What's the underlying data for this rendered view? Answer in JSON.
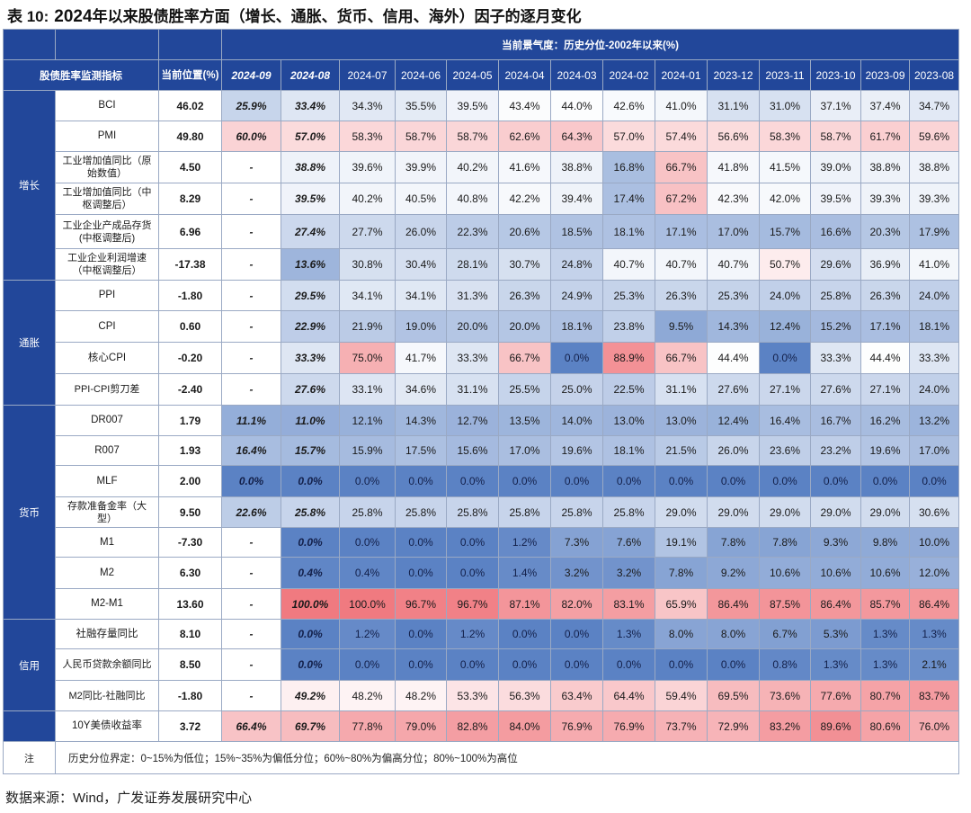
{
  "title": {
    "label": "表 10:",
    "year": "2024",
    "rest": "年以来股债胜率方面（增长、通胀、货币、信用、海外）因子的逐月变化"
  },
  "header": {
    "indicator_col": "股债胜率监测指标",
    "current_col": "当前位置(%)",
    "history_span": "当前景气度：历史分位-2002年以来(%)",
    "months": [
      "2024-09",
      "2024-08",
      "2024-07",
      "2024-06",
      "2024-05",
      "2024-04",
      "2024-03",
      "2024-02",
      "2024-01",
      "2023-12",
      "2023-11",
      "2023-10",
      "2023-09",
      "2023-08"
    ]
  },
  "groups": [
    {
      "name": "增长",
      "rows": [
        {
          "indicator": "BCI",
          "current": "46.02",
          "values": [
            "25.9%",
            "33.4%",
            "34.3%",
            "35.5%",
            "39.5%",
            "43.4%",
            "44.0%",
            "42.6%",
            "41.0%",
            "31.1%",
            "31.0%",
            "37.1%",
            "37.4%",
            "34.7%"
          ]
        },
        {
          "indicator": "PMI",
          "current": "49.80",
          "values": [
            "60.0%",
            "57.0%",
            "58.3%",
            "58.7%",
            "58.7%",
            "62.6%",
            "64.3%",
            "57.0%",
            "57.4%",
            "56.6%",
            "58.3%",
            "58.7%",
            "61.7%",
            "59.6%"
          ]
        },
        {
          "indicator": "工业增加值同比（原始数值）",
          "current": "4.50",
          "values": [
            "-",
            "38.8%",
            "39.6%",
            "39.9%",
            "40.2%",
            "41.6%",
            "38.8%",
            "16.8%",
            "66.7%",
            "41.8%",
            "41.5%",
            "39.0%",
            "38.8%",
            "38.8%"
          ]
        },
        {
          "indicator": "工业增加值同比（中枢调整后）",
          "current": "8.29",
          "values": [
            "-",
            "39.5%",
            "40.2%",
            "40.5%",
            "40.8%",
            "42.2%",
            "39.4%",
            "17.4%",
            "67.2%",
            "42.3%",
            "42.0%",
            "39.5%",
            "39.3%",
            "39.3%"
          ]
        },
        {
          "indicator": "工业企业产成品存货(中枢调整后)",
          "current": "6.96",
          "values": [
            "-",
            "27.4%",
            "27.7%",
            "26.0%",
            "22.3%",
            "20.6%",
            "18.5%",
            "18.1%",
            "17.1%",
            "17.0%",
            "15.7%",
            "16.6%",
            "20.3%",
            "17.9%"
          ]
        },
        {
          "indicator": "工业企业利润增速（中枢调整后）",
          "current": "-17.38",
          "values": [
            "-",
            "13.6%",
            "30.8%",
            "30.4%",
            "28.1%",
            "30.7%",
            "24.8%",
            "40.7%",
            "40.7%",
            "40.7%",
            "50.7%",
            "29.6%",
            "36.9%",
            "41.0%"
          ]
        }
      ]
    },
    {
      "name": "通胀",
      "rows": [
        {
          "indicator": "PPI",
          "current": "-1.80",
          "values": [
            "-",
            "29.5%",
            "34.1%",
            "34.1%",
            "31.3%",
            "26.3%",
            "24.9%",
            "25.3%",
            "26.3%",
            "25.3%",
            "24.0%",
            "25.8%",
            "26.3%",
            "24.0%"
          ]
        },
        {
          "indicator": "CPI",
          "current": "0.60",
          "values": [
            "-",
            "22.9%",
            "21.9%",
            "19.0%",
            "20.0%",
            "20.0%",
            "18.1%",
            "23.8%",
            "9.5%",
            "14.3%",
            "12.4%",
            "15.2%",
            "17.1%",
            "18.1%"
          ]
        },
        {
          "indicator": "核心CPI",
          "current": "-0.20",
          "values": [
            "-",
            "33.3%",
            "75.0%",
            "41.7%",
            "33.3%",
            "66.7%",
            "0.0%",
            "88.9%",
            "66.7%",
            "44.4%",
            "0.0%",
            "33.3%",
            "44.4%",
            "33.3%"
          ]
        },
        {
          "indicator": "PPI-CPI剪刀差",
          "current": "-2.40",
          "values": [
            "-",
            "27.6%",
            "33.1%",
            "34.6%",
            "31.1%",
            "25.5%",
            "25.0%",
            "22.5%",
            "31.1%",
            "27.6%",
            "27.1%",
            "27.6%",
            "27.1%",
            "24.0%"
          ]
        }
      ]
    },
    {
      "name": "货币",
      "rows": [
        {
          "indicator": "DR007",
          "current": "1.79",
          "values": [
            "11.1%",
            "11.0%",
            "12.1%",
            "14.3%",
            "12.7%",
            "13.5%",
            "14.0%",
            "13.0%",
            "13.0%",
            "12.4%",
            "16.4%",
            "16.7%",
            "16.2%",
            "13.2%"
          ]
        },
        {
          "indicator": "R007",
          "current": "1.93",
          "values": [
            "16.4%",
            "15.7%",
            "15.9%",
            "17.5%",
            "15.6%",
            "17.0%",
            "19.6%",
            "18.1%",
            "21.5%",
            "26.0%",
            "23.6%",
            "23.2%",
            "19.6%",
            "17.0%"
          ]
        },
        {
          "indicator": "MLF",
          "current": "2.00",
          "values": [
            "0.0%",
            "0.0%",
            "0.0%",
            "0.0%",
            "0.0%",
            "0.0%",
            "0.0%",
            "0.0%",
            "0.0%",
            "0.0%",
            "0.0%",
            "0.0%",
            "0.0%",
            "0.0%"
          ]
        },
        {
          "indicator": "存款准备金率（大型）",
          "current": "9.50",
          "values": [
            "22.6%",
            "25.8%",
            "25.8%",
            "25.8%",
            "25.8%",
            "25.8%",
            "25.8%",
            "25.8%",
            "29.0%",
            "29.0%",
            "29.0%",
            "29.0%",
            "29.0%",
            "30.6%"
          ]
        },
        {
          "indicator": "M1",
          "current": "-7.30",
          "values": [
            "-",
            "0.0%",
            "0.0%",
            "0.0%",
            "0.0%",
            "1.2%",
            "7.3%",
            "7.6%",
            "19.1%",
            "7.8%",
            "7.8%",
            "9.3%",
            "9.8%",
            "10.0%"
          ]
        },
        {
          "indicator": "M2",
          "current": "6.30",
          "values": [
            "-",
            "0.4%",
            "0.4%",
            "0.0%",
            "0.0%",
            "1.4%",
            "3.2%",
            "3.2%",
            "7.8%",
            "9.2%",
            "10.6%",
            "10.6%",
            "10.6%",
            "12.0%"
          ]
        },
        {
          "indicator": "M2-M1",
          "current": "13.60",
          "values": [
            "-",
            "100.0%",
            "100.0%",
            "96.7%",
            "96.7%",
            "87.1%",
            "82.0%",
            "83.1%",
            "65.9%",
            "86.4%",
            "87.5%",
            "86.4%",
            "85.7%",
            "86.4%"
          ]
        }
      ]
    },
    {
      "name": "信用",
      "rows": [
        {
          "indicator": "社融存量同比",
          "current": "8.10",
          "values": [
            "-",
            "0.0%",
            "1.2%",
            "0.0%",
            "1.2%",
            "0.0%",
            "0.0%",
            "1.3%",
            "8.0%",
            "8.0%",
            "6.7%",
            "5.3%",
            "1.3%",
            "1.3%"
          ]
        },
        {
          "indicator": "人民币贷款余额同比",
          "current": "8.50",
          "values": [
            "-",
            "0.0%",
            "0.0%",
            "0.0%",
            "0.0%",
            "0.0%",
            "0.0%",
            "0.0%",
            "0.0%",
            "0.0%",
            "0.8%",
            "1.3%",
            "1.3%",
            "2.1%"
          ]
        },
        {
          "indicator": "M2同比-社融同比",
          "current": "-1.80",
          "values": [
            "-",
            "49.2%",
            "48.2%",
            "48.2%",
            "53.3%",
            "56.3%",
            "63.4%",
            "64.4%",
            "59.4%",
            "69.5%",
            "73.6%",
            "77.6%",
            "80.7%",
            "83.7%"
          ]
        }
      ]
    },
    {
      "name": "",
      "rows": [
        {
          "indicator": "10Y美债收益率",
          "current": "3.72",
          "values": [
            "66.4%",
            "69.7%",
            "77.8%",
            "79.0%",
            "82.8%",
            "84.0%",
            "76.9%",
            "76.9%",
            "73.7%",
            "72.9%",
            "83.2%",
            "89.6%",
            "80.6%",
            "76.0%"
          ]
        }
      ]
    }
  ],
  "note": {
    "label": "注",
    "text": "历史分位界定：0~15%为低位；15%~35%为偏低分位；60%~80%为偏高分位；80%~100%为高位"
  },
  "source": "数据来源：Wind，广发证券发展研究中心",
  "colors": {
    "header_bg": "#22479a",
    "low": "#5b82c4",
    "mid": "#ffffff",
    "high": "#f07a80",
    "border": "#9aa9c4"
  }
}
